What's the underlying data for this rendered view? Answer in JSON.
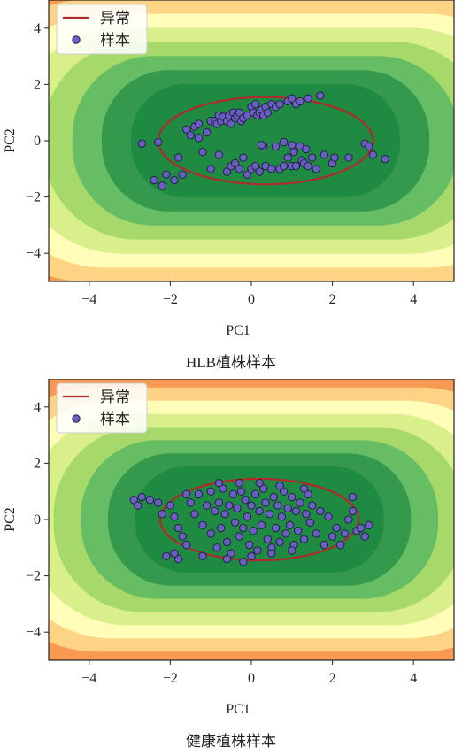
{
  "chart_data": [
    {
      "type": "scatter",
      "caption": "HLB植株样本",
      "xlabel": "PC1",
      "ylabel": "PC2",
      "xlim": [
        -5,
        5
      ],
      "ylim": [
        -5,
        5
      ],
      "xticks": [
        -4,
        -2,
        0,
        2,
        4
      ],
      "yticks": [
        -4,
        -2,
        0,
        2,
        4
      ],
      "legend": {
        "placement": "top-left",
        "items": [
          "异常",
          "样本"
        ]
      },
      "boundary": {
        "label": "异常",
        "center": [
          0.35,
          0.0
        ],
        "semi_axes": [
          2.65,
          1.55
        ],
        "color": "#b02a2a"
      },
      "contour_colors": [
        "#d7191c",
        "#ea4e37",
        "#f99a52",
        "#fdd486",
        "#fffdb8",
        "#d9ef8b",
        "#a6d96a",
        "#66bd63",
        "#34994d",
        "#1f8a42"
      ],
      "series": [
        {
          "name": "样本",
          "color": "#6a5ec2",
          "points": [
            [
              -2.7,
              -0.1
            ],
            [
              -2.3,
              -0.05
            ],
            [
              -2.4,
              -1.4
            ],
            [
              -2.2,
              -1.6
            ],
            [
              -2.1,
              -1.2
            ],
            [
              -1.9,
              -1.4
            ],
            [
              -1.8,
              -0.6
            ],
            [
              -1.7,
              -1.2
            ],
            [
              -1.6,
              0.4
            ],
            [
              -1.5,
              0.2
            ],
            [
              -1.4,
              0.5
            ],
            [
              -1.3,
              0.1
            ],
            [
              -1.3,
              0.6
            ],
            [
              -1.2,
              -0.4
            ],
            [
              -1.1,
              0.3
            ],
            [
              -1.0,
              0.7
            ],
            [
              -0.9,
              0.7
            ],
            [
              -0.85,
              0.6
            ],
            [
              -0.8,
              0.9
            ],
            [
              -0.75,
              0.7
            ],
            [
              -0.7,
              0.85
            ],
            [
              -0.6,
              0.7
            ],
            [
              -0.55,
              0.9
            ],
            [
              -0.5,
              0.6
            ],
            [
              -0.45,
              1.0
            ],
            [
              -0.4,
              0.8
            ],
            [
              -0.35,
              0.9
            ],
            [
              -0.3,
              1.0
            ],
            [
              -0.25,
              0.7
            ],
            [
              -0.2,
              0.8
            ],
            [
              -0.1,
              0.9
            ],
            [
              0.0,
              1.2
            ],
            [
              0.05,
              1.0
            ],
            [
              0.1,
              1.3
            ],
            [
              0.15,
              0.9
            ],
            [
              0.2,
              1.0
            ],
            [
              0.25,
              1.1
            ],
            [
              0.3,
              0.9
            ],
            [
              0.35,
              1.2
            ],
            [
              0.4,
              1.0
            ],
            [
              0.5,
              1.3
            ],
            [
              0.6,
              1.2
            ],
            [
              0.7,
              1.3
            ],
            [
              0.9,
              1.4
            ],
            [
              1.0,
              1.5
            ],
            [
              1.1,
              1.3
            ],
            [
              1.2,
              1.4
            ],
            [
              1.4,
              1.5
            ],
            [
              1.7,
              1.6
            ],
            [
              -1.0,
              -1.0
            ],
            [
              -0.8,
              -0.5
            ],
            [
              -0.6,
              -1.1
            ],
            [
              -0.5,
              -0.9
            ],
            [
              -0.4,
              -0.8
            ],
            [
              -0.3,
              -1.0
            ],
            [
              -0.2,
              -0.6
            ],
            [
              -0.1,
              -1.2
            ],
            [
              0.0,
              -1.0
            ],
            [
              0.1,
              -0.9
            ],
            [
              0.2,
              -1.1
            ],
            [
              0.3,
              -0.2
            ],
            [
              0.35,
              -0.9
            ],
            [
              0.5,
              -1.0
            ],
            [
              0.6,
              -0.2
            ],
            [
              0.7,
              -1.0
            ],
            [
              0.8,
              -0.9
            ],
            [
              0.9,
              -0.6
            ],
            [
              1.0,
              -0.9
            ],
            [
              1.05,
              -0.4
            ],
            [
              1.1,
              -0.9
            ],
            [
              1.2,
              -0.2
            ],
            [
              1.25,
              -0.7
            ],
            [
              1.3,
              -0.8
            ],
            [
              1.35,
              -0.3
            ],
            [
              1.4,
              -0.9
            ],
            [
              1.5,
              -0.6
            ],
            [
              1.6,
              -1.0
            ],
            [
              1.8,
              -0.5
            ],
            [
              2.0,
              -0.8
            ],
            [
              2.05,
              -0.6
            ],
            [
              2.4,
              -0.6
            ],
            [
              2.8,
              -0.1
            ],
            [
              2.9,
              -0.2
            ],
            [
              3.0,
              -0.5
            ],
            [
              3.3,
              -0.65
            ],
            [
              0.8,
              -0.05
            ],
            [
              1.0,
              -0.15
            ],
            [
              0.25,
              -0.15
            ]
          ]
        }
      ]
    },
    {
      "type": "scatter",
      "caption": "健康植株样本",
      "xlabel": "PC1",
      "ylabel": "PC2",
      "xlim": [
        -5,
        5
      ],
      "ylim": [
        -5,
        5
      ],
      "xticks": [
        -4,
        -2,
        0,
        2,
        4
      ],
      "yticks": [
        -4,
        -2,
        0,
        2,
        4
      ],
      "legend": {
        "placement": "top-left",
        "items": [
          "异常",
          "样本"
        ]
      },
      "boundary": {
        "label": "异常",
        "center": [
          0.2,
          0.0
        ],
        "semi_axes": [
          2.45,
          1.45
        ],
        "color": "#b02a2a"
      },
      "contour_colors": [
        "#d7191c",
        "#ea4e37",
        "#f99a52",
        "#fdd486",
        "#fffdb8",
        "#d9ef8b",
        "#a6d96a",
        "#66bd63",
        "#34994d",
        "#1f8a42"
      ],
      "series": [
        {
          "name": "样本",
          "color": "#6a5ec2",
          "points": [
            [
              -2.9,
              0.7
            ],
            [
              -2.8,
              0.5
            ],
            [
              -2.7,
              0.8
            ],
            [
              -2.5,
              0.7
            ],
            [
              -2.3,
              0.6
            ],
            [
              -2.0,
              0.5
            ],
            [
              -1.9,
              0.1
            ],
            [
              -1.8,
              -0.3
            ],
            [
              -1.7,
              -0.6
            ],
            [
              -1.6,
              -0.9
            ],
            [
              -1.8,
              -1.4
            ],
            [
              -1.9,
              -1.2
            ],
            [
              -2.1,
              -1.3
            ],
            [
              -1.5,
              0.6
            ],
            [
              -1.4,
              0.2
            ],
            [
              -1.3,
              0.9
            ],
            [
              -1.2,
              -0.2
            ],
            [
              -1.1,
              0.5
            ],
            [
              -1.0,
              -0.5
            ],
            [
              -1.0,
              1.0
            ],
            [
              -0.9,
              0.3
            ],
            [
              -0.85,
              -1.0
            ],
            [
              -0.8,
              0.6
            ],
            [
              -0.75,
              -0.3
            ],
            [
              -0.7,
              1.1
            ],
            [
              -0.65,
              0.2
            ],
            [
              -0.6,
              -0.8
            ],
            [
              -0.55,
              0.5
            ],
            [
              -0.5,
              -1.2
            ],
            [
              -0.45,
              0.9
            ],
            [
              -0.4,
              -0.1
            ],
            [
              -0.35,
              0.4
            ],
            [
              -0.3,
              -0.6
            ],
            [
              -0.25,
              1.0
            ],
            [
              -0.2,
              -0.3
            ],
            [
              -0.15,
              0.7
            ],
            [
              -0.1,
              0.1
            ],
            [
              -0.05,
              -0.9
            ],
            [
              0.0,
              0.5
            ],
            [
              0.05,
              -0.4
            ],
            [
              0.1,
              0.9
            ],
            [
              0.15,
              -1.1
            ],
            [
              0.2,
              0.3
            ],
            [
              0.25,
              -0.2
            ],
            [
              0.3,
              1.1
            ],
            [
              0.35,
              0.6
            ],
            [
              0.4,
              -0.7
            ],
            [
              0.45,
              0.2
            ],
            [
              0.5,
              -1.0
            ],
            [
              0.55,
              0.8
            ],
            [
              0.6,
              -0.3
            ],
            [
              0.65,
              0.5
            ],
            [
              0.7,
              -0.8
            ],
            [
              0.75,
              0.1
            ],
            [
              0.8,
              1.0
            ],
            [
              0.85,
              -0.5
            ],
            [
              0.9,
              0.4
            ],
            [
              0.95,
              -0.2
            ],
            [
              1.0,
              0.8
            ],
            [
              1.05,
              -0.9
            ],
            [
              1.1,
              0.3
            ],
            [
              1.15,
              -0.4
            ],
            [
              1.2,
              0.6
            ],
            [
              1.3,
              -0.7
            ],
            [
              1.35,
              0.2
            ],
            [
              1.4,
              0.9
            ],
            [
              1.45,
              -0.1
            ],
            [
              1.5,
              0.5
            ],
            [
              1.6,
              -0.5
            ],
            [
              1.7,
              0.3
            ],
            [
              1.8,
              -0.9
            ],
            [
              1.9,
              0.1
            ],
            [
              2.0,
              -0.6
            ],
            [
              2.1,
              -0.3
            ],
            [
              2.2,
              -0.9
            ],
            [
              2.3,
              -0.5
            ],
            [
              2.4,
              0.0
            ],
            [
              2.5,
              0.3
            ],
            [
              2.6,
              -0.4
            ],
            [
              2.7,
              -0.3
            ],
            [
              2.8,
              -0.6
            ],
            [
              2.9,
              -0.2
            ],
            [
              2.5,
              0.8
            ],
            [
              -1.2,
              -1.3
            ],
            [
              -0.6,
              -1.4
            ],
            [
              0.0,
              -1.3
            ],
            [
              0.5,
              -1.2
            ],
            [
              1.0,
              -1.1
            ],
            [
              -0.3,
              1.3
            ],
            [
              0.2,
              1.3
            ],
            [
              0.7,
              1.2
            ],
            [
              1.3,
              1.1
            ],
            [
              -1.6,
              0.9
            ],
            [
              -2.2,
              0.2
            ],
            [
              -0.8,
              1.3
            ],
            [
              -0.2,
              -1.5
            ]
          ]
        }
      ]
    }
  ]
}
